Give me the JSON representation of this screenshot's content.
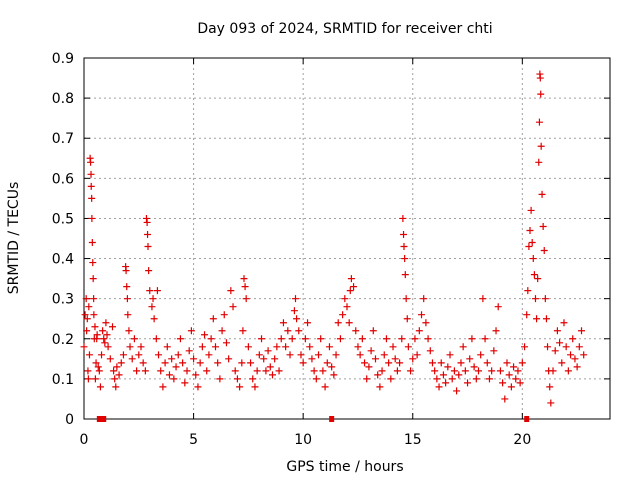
{
  "chart_data": {
    "type": "scatter",
    "title": "Day 093 of 2024, SRMTID for receiver chti",
    "xlabel": "GPS time / hours",
    "ylabel": "SRMTID / TECUs",
    "xlim": [
      0,
      24
    ],
    "ylim": [
      0,
      0.9
    ],
    "grid": true,
    "x_ticks": [
      0,
      5,
      10,
      15,
      20
    ],
    "x_tick_labels": [
      "0",
      "5",
      "10",
      "15",
      "20"
    ],
    "y_ticks": [
      0,
      0.1,
      0.2,
      0.3,
      0.4,
      0.5,
      0.6,
      0.7,
      0.8,
      0.9
    ],
    "y_tick_labels": [
      "0",
      "0.1",
      "0.2",
      "0.3",
      "0.4",
      "0.5",
      "0.6",
      "0.7",
      "0.8",
      "0.9"
    ],
    "marker": "+",
    "color": "#e00000",
    "series": [
      {
        "name": "SRMTID",
        "points": [
          [
            0.0,
            0.18
          ],
          [
            0.05,
            0.26
          ],
          [
            0.1,
            0.3
          ],
          [
            0.12,
            0.22
          ],
          [
            0.15,
            0.25
          ],
          [
            0.18,
            0.12
          ],
          [
            0.2,
            0.1
          ],
          [
            0.22,
            0.28
          ],
          [
            0.25,
            0.16
          ],
          [
            0.28,
            0.65
          ],
          [
            0.3,
            0.64
          ],
          [
            0.32,
            0.61
          ],
          [
            0.33,
            0.58
          ],
          [
            0.35,
            0.55
          ],
          [
            0.36,
            0.5
          ],
          [
            0.38,
            0.44
          ],
          [
            0.4,
            0.39
          ],
          [
            0.42,
            0.35
          ],
          [
            0.44,
            0.3
          ],
          [
            0.45,
            0.26
          ],
          [
            0.47,
            0.2
          ],
          [
            0.5,
            0.23
          ],
          [
            0.52,
            0.1
          ],
          [
            0.55,
            0.14
          ],
          [
            0.58,
            0.2
          ],
          [
            0.6,
            0.21
          ],
          [
            0.65,
            0.13
          ],
          [
            0.7,
            0.12
          ],
          [
            0.75,
            0.08
          ],
          [
            0.8,
            0.16
          ],
          [
            0.85,
            0.22
          ],
          [
            0.9,
            0.2
          ],
          [
            0.95,
            0.19
          ],
          [
            1.0,
            0.24
          ],
          [
            1.05,
            0.21
          ],
          [
            1.1,
            0.18
          ],
          [
            1.2,
            0.15
          ],
          [
            1.3,
            0.23
          ],
          [
            1.35,
            0.12
          ],
          [
            1.4,
            0.1
          ],
          [
            1.45,
            0.08
          ],
          [
            1.5,
            0.13
          ],
          [
            1.6,
            0.11
          ],
          [
            1.7,
            0.14
          ],
          [
            1.8,
            0.16
          ],
          [
            1.9,
            0.38
          ],
          [
            1.92,
            0.37
          ],
          [
            1.95,
            0.33
          ],
          [
            1.98,
            0.3
          ],
          [
            2.0,
            0.26
          ],
          [
            2.05,
            0.22
          ],
          [
            2.1,
            0.18
          ],
          [
            2.2,
            0.15
          ],
          [
            2.3,
            0.2
          ],
          [
            2.4,
            0.12
          ],
          [
            2.5,
            0.16
          ],
          [
            2.6,
            0.18
          ],
          [
            2.7,
            0.14
          ],
          [
            2.8,
            0.12
          ],
          [
            2.85,
            0.5
          ],
          [
            2.88,
            0.49
          ],
          [
            2.9,
            0.46
          ],
          [
            2.92,
            0.43
          ],
          [
            2.95,
            0.37
          ],
          [
            3.0,
            0.32
          ],
          [
            3.1,
            0.28
          ],
          [
            3.15,
            0.3
          ],
          [
            3.2,
            0.25
          ],
          [
            3.3,
            0.2
          ],
          [
            3.35,
            0.32
          ],
          [
            3.4,
            0.16
          ],
          [
            3.5,
            0.12
          ],
          [
            3.6,
            0.08
          ],
          [
            3.7,
            0.14
          ],
          [
            3.8,
            0.18
          ],
          [
            3.9,
            0.11
          ],
          [
            4.0,
            0.15
          ],
          [
            4.1,
            0.1
          ],
          [
            4.2,
            0.13
          ],
          [
            4.3,
            0.16
          ],
          [
            4.4,
            0.2
          ],
          [
            4.5,
            0.14
          ],
          [
            4.6,
            0.09
          ],
          [
            4.7,
            0.12
          ],
          [
            4.8,
            0.17
          ],
          [
            4.9,
            0.22
          ],
          [
            5.0,
            0.15
          ],
          [
            5.1,
            0.11
          ],
          [
            5.2,
            0.08
          ],
          [
            5.3,
            0.14
          ],
          [
            5.4,
            0.18
          ],
          [
            5.5,
            0.21
          ],
          [
            5.6,
            0.12
          ],
          [
            5.7,
            0.16
          ],
          [
            5.8,
            0.2
          ],
          [
            5.9,
            0.25
          ],
          [
            6.0,
            0.18
          ],
          [
            6.1,
            0.14
          ],
          [
            6.2,
            0.1
          ],
          [
            6.3,
            0.22
          ],
          [
            6.4,
            0.26
          ],
          [
            6.5,
            0.19
          ],
          [
            6.6,
            0.15
          ],
          [
            6.7,
            0.32
          ],
          [
            6.8,
            0.28
          ],
          [
            6.9,
            0.12
          ],
          [
            7.0,
            0.1
          ],
          [
            7.1,
            0.08
          ],
          [
            7.2,
            0.14
          ],
          [
            7.25,
            0.22
          ],
          [
            7.3,
            0.35
          ],
          [
            7.35,
            0.33
          ],
          [
            7.4,
            0.3
          ],
          [
            7.5,
            0.18
          ],
          [
            7.6,
            0.14
          ],
          [
            7.7,
            0.1
          ],
          [
            7.8,
            0.08
          ],
          [
            7.9,
            0.12
          ],
          [
            8.0,
            0.16
          ],
          [
            8.1,
            0.2
          ],
          [
            8.2,
            0.15
          ],
          [
            8.3,
            0.12
          ],
          [
            8.4,
            0.17
          ],
          [
            8.5,
            0.13
          ],
          [
            8.6,
            0.11
          ],
          [
            8.7,
            0.15
          ],
          [
            8.8,
            0.18
          ],
          [
            8.9,
            0.12
          ],
          [
            9.0,
            0.2
          ],
          [
            9.1,
            0.24
          ],
          [
            9.2,
            0.18
          ],
          [
            9.3,
            0.22
          ],
          [
            9.4,
            0.16
          ],
          [
            9.5,
            0.2
          ],
          [
            9.6,
            0.27
          ],
          [
            9.65,
            0.3
          ],
          [
            9.7,
            0.25
          ],
          [
            9.8,
            0.22
          ],
          [
            9.9,
            0.16
          ],
          [
            10.0,
            0.14
          ],
          [
            10.1,
            0.2
          ],
          [
            10.2,
            0.24
          ],
          [
            10.3,
            0.18
          ],
          [
            10.4,
            0.15
          ],
          [
            10.5,
            0.12
          ],
          [
            10.6,
            0.1
          ],
          [
            10.7,
            0.16
          ],
          [
            10.8,
            0.2
          ],
          [
            10.9,
            0.12
          ],
          [
            11.0,
            0.08
          ],
          [
            11.1,
            0.14
          ],
          [
            11.2,
            0.18
          ],
          [
            11.3,
            0.13
          ],
          [
            11.4,
            0.11
          ],
          [
            11.5,
            0.16
          ],
          [
            11.6,
            0.24
          ],
          [
            11.7,
            0.2
          ],
          [
            11.8,
            0.26
          ],
          [
            11.9,
            0.3
          ],
          [
            12.0,
            0.28
          ],
          [
            12.1,
            0.24
          ],
          [
            12.15,
            0.32
          ],
          [
            12.2,
            0.35
          ],
          [
            12.3,
            0.33
          ],
          [
            12.4,
            0.22
          ],
          [
            12.5,
            0.18
          ],
          [
            12.6,
            0.16
          ],
          [
            12.7,
            0.2
          ],
          [
            12.8,
            0.14
          ],
          [
            12.9,
            0.1
          ],
          [
            13.0,
            0.13
          ],
          [
            13.1,
            0.17
          ],
          [
            13.2,
            0.22
          ],
          [
            13.3,
            0.15
          ],
          [
            13.4,
            0.11
          ],
          [
            13.5,
            0.08
          ],
          [
            13.6,
            0.12
          ],
          [
            13.7,
            0.16
          ],
          [
            13.8,
            0.2
          ],
          [
            13.9,
            0.14
          ],
          [
            14.0,
            0.1
          ],
          [
            14.1,
            0.18
          ],
          [
            14.2,
            0.15
          ],
          [
            14.3,
            0.12
          ],
          [
            14.4,
            0.14
          ],
          [
            14.5,
            0.2
          ],
          [
            14.55,
            0.5
          ],
          [
            14.58,
            0.46
          ],
          [
            14.6,
            0.43
          ],
          [
            14.63,
            0.4
          ],
          [
            14.66,
            0.36
          ],
          [
            14.7,
            0.3
          ],
          [
            14.75,
            0.25
          ],
          [
            14.8,
            0.18
          ],
          [
            14.9,
            0.12
          ],
          [
            15.0,
            0.15
          ],
          [
            15.1,
            0.2
          ],
          [
            15.2,
            0.16
          ],
          [
            15.3,
            0.22
          ],
          [
            15.4,
            0.26
          ],
          [
            15.5,
            0.3
          ],
          [
            15.6,
            0.24
          ],
          [
            15.7,
            0.2
          ],
          [
            15.8,
            0.17
          ],
          [
            15.9,
            0.14
          ],
          [
            16.0,
            0.12
          ],
          [
            16.1,
            0.1
          ],
          [
            16.2,
            0.08
          ],
          [
            16.3,
            0.14
          ],
          [
            16.4,
            0.11
          ],
          [
            16.5,
            0.09
          ],
          [
            16.6,
            0.13
          ],
          [
            16.7,
            0.16
          ],
          [
            16.8,
            0.1
          ],
          [
            16.9,
            0.12
          ],
          [
            17.0,
            0.07
          ],
          [
            17.1,
            0.11
          ],
          [
            17.2,
            0.14
          ],
          [
            17.3,
            0.18
          ],
          [
            17.4,
            0.12
          ],
          [
            17.5,
            0.09
          ],
          [
            17.6,
            0.15
          ],
          [
            17.7,
            0.2
          ],
          [
            17.8,
            0.13
          ],
          [
            17.9,
            0.1
          ],
          [
            18.0,
            0.12
          ],
          [
            18.1,
            0.16
          ],
          [
            18.2,
            0.3
          ],
          [
            18.3,
            0.2
          ],
          [
            18.4,
            0.14
          ],
          [
            18.5,
            0.1
          ],
          [
            18.6,
            0.12
          ],
          [
            18.7,
            0.17
          ],
          [
            18.8,
            0.22
          ],
          [
            18.9,
            0.28
          ],
          [
            19.0,
            0.12
          ],
          [
            19.1,
            0.09
          ],
          [
            19.2,
            0.05
          ],
          [
            19.3,
            0.14
          ],
          [
            19.4,
            0.11
          ],
          [
            19.5,
            0.08
          ],
          [
            19.6,
            0.13
          ],
          [
            19.7,
            0.1
          ],
          [
            19.8,
            0.12
          ],
          [
            19.9,
            0.09
          ],
          [
            20.0,
            0.14
          ],
          [
            20.1,
            0.18
          ],
          [
            20.2,
            0.26
          ],
          [
            20.25,
            0.32
          ],
          [
            20.3,
            0.43
          ],
          [
            20.35,
            0.47
          ],
          [
            20.4,
            0.52
          ],
          [
            20.45,
            0.44
          ],
          [
            20.5,
            0.4
          ],
          [
            20.55,
            0.36
          ],
          [
            20.6,
            0.3
          ],
          [
            20.65,
            0.25
          ],
          [
            20.7,
            0.35
          ],
          [
            20.75,
            0.64
          ],
          [
            20.78,
            0.74
          ],
          [
            20.8,
            0.86
          ],
          [
            20.82,
            0.85
          ],
          [
            20.84,
            0.81
          ],
          [
            20.86,
            0.68
          ],
          [
            20.9,
            0.56
          ],
          [
            20.95,
            0.48
          ],
          [
            21.0,
            0.42
          ],
          [
            21.05,
            0.3
          ],
          [
            21.1,
            0.25
          ],
          [
            21.15,
            0.18
          ],
          [
            21.2,
            0.12
          ],
          [
            21.25,
            0.08
          ],
          [
            21.3,
            0.04
          ],
          [
            21.4,
            0.12
          ],
          [
            21.5,
            0.17
          ],
          [
            21.6,
            0.22
          ],
          [
            21.7,
            0.19
          ],
          [
            21.8,
            0.14
          ],
          [
            21.9,
            0.24
          ],
          [
            22.0,
            0.18
          ],
          [
            22.1,
            0.12
          ],
          [
            22.2,
            0.16
          ],
          [
            22.3,
            0.2
          ],
          [
            22.4,
            0.15
          ],
          [
            22.5,
            0.13
          ],
          [
            22.6,
            0.18
          ],
          [
            22.7,
            0.22
          ],
          [
            22.8,
            0.16
          ]
        ]
      }
    ],
    "zero_markers_x": [
      0.7,
      0.8,
      0.9,
      11.3,
      20.2
    ]
  }
}
